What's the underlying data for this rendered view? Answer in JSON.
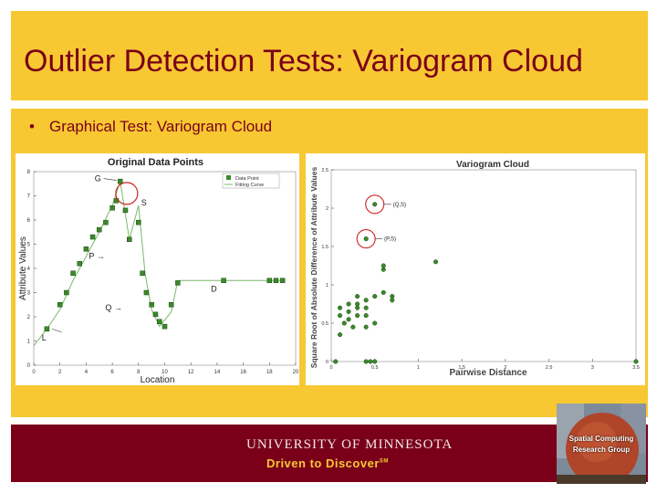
{
  "slide": {
    "title": "Outlier Detection Tests: Variogram Cloud",
    "bullet": "Graphical Test: Variogram Cloud"
  },
  "colors": {
    "gold": "#f7c832",
    "maroon": "#7a0019",
    "point_fill": "#3a8a2a",
    "outlier_circle": "#cc2222"
  },
  "chart_data": [
    {
      "type": "line",
      "title": "Original Data Points",
      "xlabel": "Location",
      "ylabel": "Attribute Values",
      "xlim": [
        0,
        20
      ],
      "ylim": [
        0,
        8
      ],
      "xticks": [
        "0",
        "2",
        "4",
        "6",
        "8",
        "10",
        "12",
        "14",
        "16",
        "18",
        "20"
      ],
      "yticks": [
        "0",
        "1",
        "2",
        "3",
        "4",
        "5",
        "6",
        "7",
        "8"
      ],
      "legend": {
        "position": "top-right",
        "entries": [
          "Data Point",
          "Fitting Curve"
        ]
      },
      "series": [
        {
          "name": "Data Point",
          "x": [
            1,
            2,
            2.5,
            3,
            3.5,
            4,
            4.5,
            5,
            5.5,
            6,
            6.3,
            6.6,
            7,
            7.3,
            8,
            8.3,
            8.6,
            9,
            9.3,
            9.6,
            10,
            10.5,
            11,
            14.5,
            18,
            18.5,
            19
          ],
          "y": [
            1.5,
            2.5,
            3.0,
            3.8,
            4.2,
            4.8,
            5.3,
            5.6,
            5.9,
            6.5,
            6.8,
            7.6,
            6.4,
            5.2,
            5.9,
            3.8,
            3.0,
            2.5,
            2.1,
            1.8,
            1.6,
            2.5,
            3.4,
            3.5,
            3.5,
            3.5,
            3.5
          ]
        }
      ],
      "fitting_curve": {
        "x": [
          0,
          1,
          2,
          3,
          4,
          5,
          6,
          6.6,
          7.3,
          8,
          8.5,
          9,
          9.6,
          10.5,
          11,
          12,
          14,
          16,
          18,
          19
        ],
        "y": [
          0.8,
          1.5,
          2.3,
          3.5,
          4.5,
          5.5,
          6.6,
          7.6,
          5.2,
          6.6,
          3.8,
          2.3,
          1.6,
          2.2,
          3.5,
          3.5,
          3.5,
          3.5,
          3.5,
          3.5
        ]
      },
      "annotations": [
        {
          "label": "G",
          "x": 6.6,
          "y": 7.6
        },
        {
          "label": "S",
          "x": 7.3,
          "y": 6.8
        },
        {
          "label": "P",
          "x": 6.3,
          "y": 4.7
        },
        {
          "label": "D",
          "x": 14.5,
          "y": 3.5
        },
        {
          "label": "Q",
          "x": 7.9,
          "y": 2.5
        },
        {
          "label": "L",
          "x": 2.0,
          "y": 1.4
        }
      ]
    },
    {
      "type": "scatter",
      "title": "Variogram Cloud",
      "xlabel": "Pairwise Distance",
      "ylabel": "Square Root of Absolute Difference of Attribute Values",
      "xlim": [
        0,
        3.5
      ],
      "ylim": [
        0,
        2.5
      ],
      "xticks": [
        "0",
        "0.5",
        "1",
        "1.5",
        "2",
        "2.5",
        "3",
        "3.5"
      ],
      "yticks": [
        "0",
        "0.5",
        "1",
        "1.5",
        "2",
        "2.5"
      ],
      "x": [
        0.05,
        0.1,
        0.1,
        0.1,
        0.15,
        0.2,
        0.2,
        0.2,
        0.25,
        0.3,
        0.3,
        0.3,
        0.3,
        0.4,
        0.4,
        0.4,
        0.4,
        0.4,
        0.5,
        0.5,
        0.5,
        0.6,
        0.6,
        0.6,
        0.7,
        0.7,
        1.2,
        0.5,
        0.4,
        0.45,
        3.5
      ],
      "y": [
        0.0,
        0.35,
        0.6,
        0.7,
        0.5,
        0.55,
        0.65,
        0.75,
        0.45,
        0.6,
        0.7,
        0.75,
        0.85,
        0.45,
        0.6,
        0.7,
        0.8,
        0.0,
        0.5,
        0.85,
        0.0,
        0.9,
        1.2,
        1.25,
        0.8,
        0.85,
        1.3,
        2.05,
        1.6,
        0.0,
        0.0
      ],
      "annotations": [
        {
          "label": "(Q,S)",
          "x": 0.5,
          "y": 2.05
        },
        {
          "label": "(P,S)",
          "x": 0.4,
          "y": 1.6
        }
      ]
    }
  ],
  "footer": {
    "university": "UNIVERSITY OF MINNESOTA",
    "tagline": "Driven to Discover",
    "tagline_mark": "SM",
    "logo_line1": "Spatial Computing",
    "logo_line2": "Research Group"
  }
}
